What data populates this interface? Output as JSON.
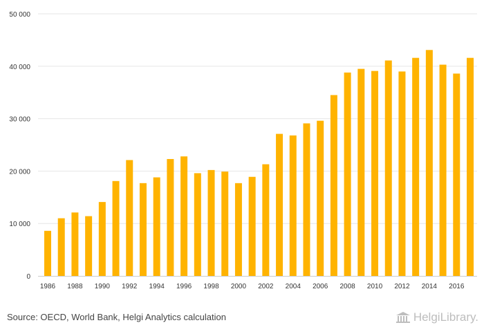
{
  "chart_data": {
    "type": "bar",
    "title": "",
    "xlabel": "",
    "ylabel": "",
    "ylim": [
      0,
      50000
    ],
    "yticks": [
      0,
      10000,
      20000,
      30000,
      40000,
      50000
    ],
    "ytick_labels": [
      "0",
      "10 000",
      "20 000",
      "30 000",
      "40 000",
      "50 000"
    ],
    "grid": true,
    "bar_color": "#FFB300",
    "categories": [
      "1986",
      "1987",
      "1988",
      "1989",
      "1990",
      "1991",
      "1992",
      "1993",
      "1994",
      "1995",
      "1996",
      "1997",
      "1998",
      "1999",
      "2000",
      "2001",
      "2002",
      "2003",
      "2004",
      "2005",
      "2006",
      "2007",
      "2008",
      "2009",
      "2010",
      "2011",
      "2012",
      "2013",
      "2014",
      "2015",
      "2016",
      "2017"
    ],
    "xtick_labels": [
      "1986",
      "1988",
      "1990",
      "1992",
      "1994",
      "1996",
      "1998",
      "2000",
      "2002",
      "2004",
      "2006",
      "2008",
      "2010",
      "2012",
      "2014",
      "2016"
    ],
    "values": [
      8600,
      11000,
      12100,
      11400,
      14100,
      18100,
      22100,
      17700,
      18800,
      22300,
      22800,
      19600,
      20200,
      19900,
      17700,
      18900,
      21300,
      27100,
      26800,
      29100,
      29600,
      34500,
      38800,
      39500,
      39100,
      41100,
      39000,
      41600,
      43100,
      40300,
      38600,
      41600
    ]
  },
  "footer": {
    "source": "Source: OECD, World Bank, Helgi Analytics calculation",
    "brand": "HelgiLibrary."
  }
}
